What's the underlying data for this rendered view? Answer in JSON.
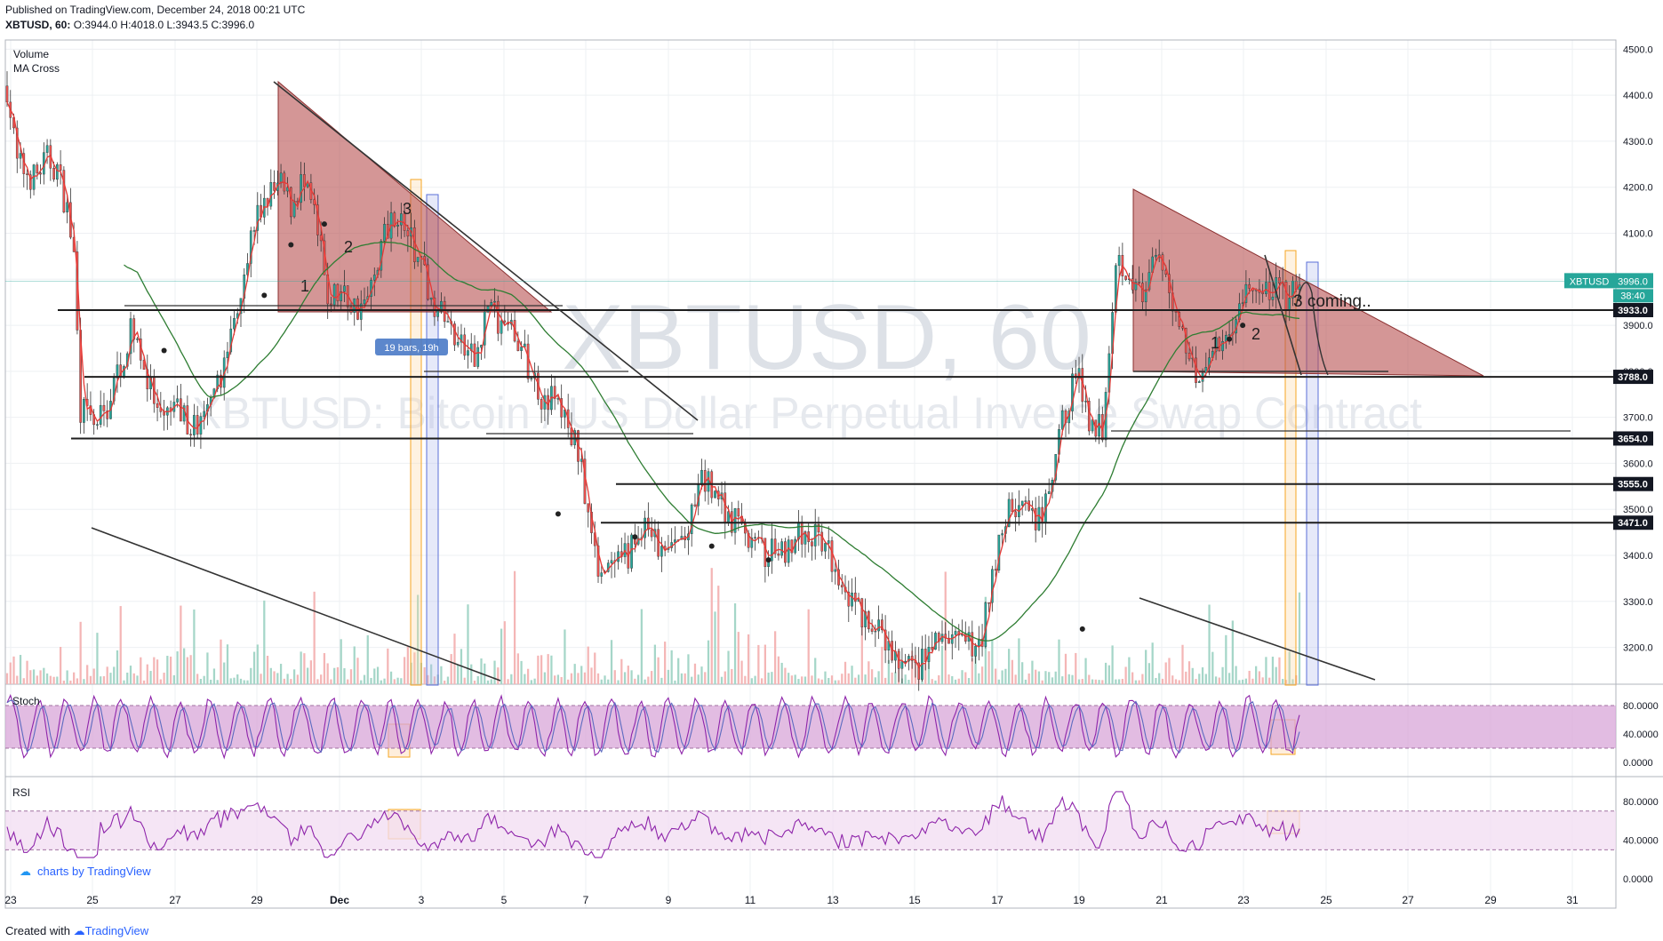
{
  "header": {
    "published": "Published on TradingView.com, December 24, 2018 00:21 UTC",
    "symbol": "XBTUSD, 60",
    "ohlc": "O:3944.0 H:4018.0 L:3943.5 C:3996.0"
  },
  "footer": {
    "created_with": "Created with",
    "brand": "TradingView"
  },
  "watermark": {
    "symbol": "XBTUSD, 60",
    "description": "XBTUSD: Bitcoin / US Dollar Perpetual Inverse Swap Contract"
  },
  "colors": {
    "up": "#26a69a",
    "down": "#ef5350",
    "ma": "#2e7d32",
    "ma_fast": "#e53935",
    "triangle_fill": "#b85050",
    "orange": "#f5a623",
    "blue": "#5b6fd8",
    "stoch_band": "#d8a5d8",
    "rsi_band": "#f1dcf1",
    "k_line": "#8e24aa",
    "d_line": "#5c6bc0",
    "rsi_line": "#8e24aa"
  },
  "chart_data": [
    {
      "type": "candlestick",
      "title": "XBTUSD, 60",
      "indicators": [
        "Volume",
        "MA Cross"
      ],
      "ylim": [
        3120,
        4520
      ],
      "y_ticks": [
        3200,
        3300,
        3400,
        3500,
        3600,
        3700,
        3800,
        3900,
        4000,
        4100,
        4200,
        4300,
        4400,
        4500
      ],
      "y_tick_labels": [
        "3200.0",
        "3300.0",
        "3400.0",
        "3500.0",
        "3600.0",
        "3700.0",
        "3800.0",
        "3900.0",
        "4000.0",
        "4100.0",
        "4200.0",
        "4300.0",
        "4400.0",
        "4500.0"
      ],
      "x_labels": [
        "23",
        "25",
        "27",
        "29",
        "Dec",
        "3",
        "5",
        "7",
        "9",
        "11",
        "13",
        "15",
        "17",
        "19",
        "21",
        "23",
        "25",
        "27",
        "29",
        "31"
      ],
      "approx_close_path": [
        [
          0,
          4420
        ],
        [
          3,
          4250
        ],
        [
          8,
          4220
        ],
        [
          12,
          4260
        ],
        [
          15,
          4240
        ],
        [
          18,
          4150
        ],
        [
          20,
          4050
        ],
        [
          22,
          3720
        ],
        [
          26,
          3680
        ],
        [
          30,
          3720
        ],
        [
          34,
          3820
        ],
        [
          38,
          3900
        ],
        [
          42,
          3780
        ],
        [
          46,
          3680
        ],
        [
          50,
          3720
        ],
        [
          54,
          3690
        ],
        [
          58,
          3680
        ],
        [
          62,
          3730
        ],
        [
          66,
          3850
        ],
        [
          70,
          3990
        ],
        [
          74,
          4120
        ],
        [
          78,
          4180
        ],
        [
          82,
          4200
        ],
        [
          85,
          4160
        ],
        [
          88,
          4210
        ],
        [
          92,
          4140
        ],
        [
          96,
          3960
        ],
        [
          100,
          3970
        ],
        [
          104,
          3940
        ],
        [
          108,
          3950
        ],
        [
          112,
          4080
        ],
        [
          116,
          4150
        ],
        [
          120,
          4100
        ],
        [
          124,
          4020
        ],
        [
          128,
          3950
        ],
        [
          132,
          3900
        ],
        [
          136,
          3850
        ],
        [
          140,
          3820
        ],
        [
          144,
          3950
        ],
        [
          148,
          3900
        ],
        [
          152,
          3880
        ],
        [
          156,
          3810
        ],
        [
          160,
          3750
        ],
        [
          164,
          3740
        ],
        [
          168,
          3680
        ],
        [
          172,
          3600
        ],
        [
          176,
          3390
        ],
        [
          180,
          3360
        ],
        [
          184,
          3380
        ],
        [
          188,
          3430
        ],
        [
          192,
          3460
        ],
        [
          196,
          3400
        ],
        [
          200,
          3420
        ],
        [
          204,
          3450
        ],
        [
          208,
          3560
        ],
        [
          212,
          3540
        ],
        [
          216,
          3490
        ],
        [
          220,
          3460
        ],
        [
          224,
          3420
        ],
        [
          228,
          3400
        ],
        [
          232,
          3410
        ],
        [
          236,
          3440
        ],
        [
          240,
          3450
        ],
        [
          244,
          3420
        ],
        [
          248,
          3380
        ],
        [
          252,
          3320
        ],
        [
          256,
          3260
        ],
        [
          260,
          3240
        ],
        [
          264,
          3190
        ],
        [
          268,
          3160
        ],
        [
          272,
          3150
        ],
        [
          276,
          3190
        ],
        [
          280,
          3220
        ],
        [
          284,
          3210
        ],
        [
          288,
          3200
        ],
        [
          292,
          3230
        ],
        [
          296,
          3400
        ],
        [
          300,
          3500
        ],
        [
          304,
          3510
        ],
        [
          308,
          3460
        ],
        [
          312,
          3520
        ],
        [
          316,
          3690
        ],
        [
          320,
          3800
        ],
        [
          324,
          3700
        ],
        [
          328,
          3680
        ],
        [
          332,
          4050
        ],
        [
          336,
          4020
        ],
        [
          340,
          3950
        ],
        [
          344,
          4040
        ],
        [
          348,
          3980
        ],
        [
          352,
          3880
        ],
        [
          356,
          3800
        ],
        [
          360,
          3820
        ],
        [
          364,
          3860
        ],
        [
          368,
          3930
        ],
        [
          372,
          3980
        ],
        [
          376,
          3960
        ],
        [
          380,
          3990
        ],
        [
          384,
          3950
        ],
        [
          387,
          3996
        ]
      ],
      "horizontal_levels": [
        {
          "value": 3933,
          "label": "3933.0"
        },
        {
          "value": 3788,
          "label": "3788.0"
        },
        {
          "value": 3654,
          "label": "3654.0"
        },
        {
          "value": 3555,
          "label": "3555.0"
        },
        {
          "value": 3471,
          "label": "3471.0"
        }
      ],
      "current_price": {
        "label": "XBTUSD",
        "value": "3996.0",
        "countdown": "38:40"
      },
      "annotations": {
        "wave_labels_left": [
          "1",
          "2",
          "3"
        ],
        "wave_labels_right": [
          "1",
          "2",
          "3 coming.."
        ],
        "measure_label": "19 bars, 19h"
      }
    },
    {
      "type": "line",
      "title": "Stoch",
      "ylim": [
        -10,
        100
      ],
      "y_tick_labels": [
        "80.0000",
        "40.0000",
        "0.0000"
      ],
      "band": [
        20,
        80
      ]
    },
    {
      "type": "line",
      "title": "RSI",
      "ylim": [
        -10,
        100
      ],
      "y_tick_labels": [
        "80.0000",
        "40.0000",
        "0.0000"
      ],
      "band": [
        30,
        70
      ]
    }
  ],
  "tv_badge": "charts by TradingView"
}
